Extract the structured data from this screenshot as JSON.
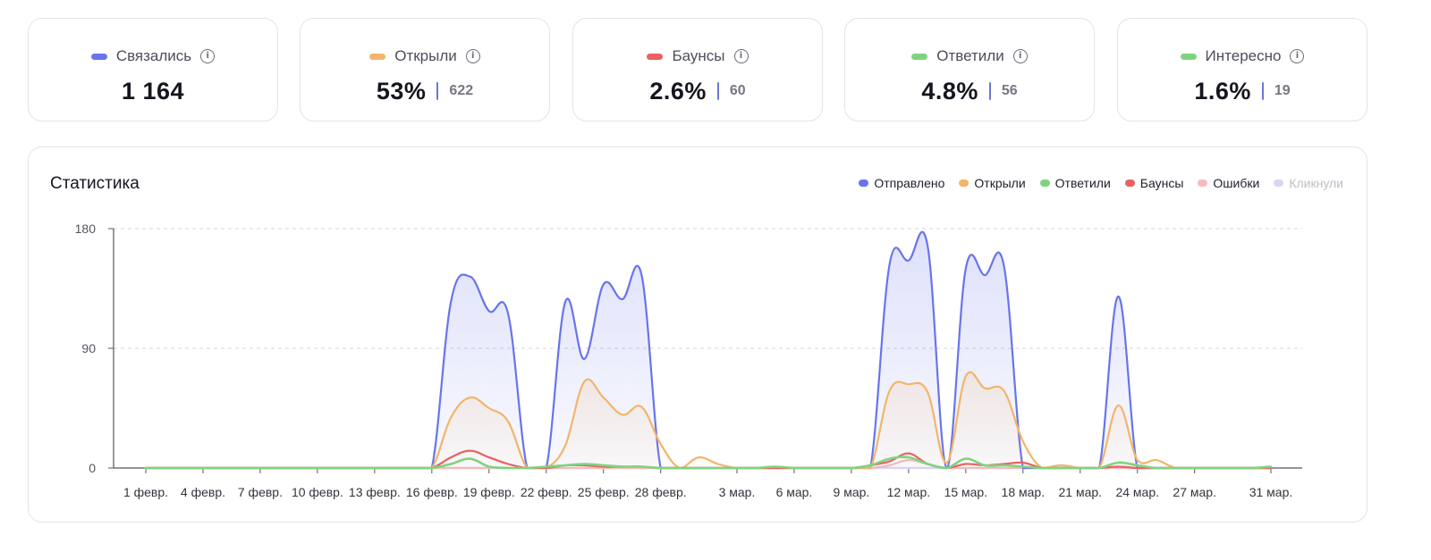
{
  "cards": [
    {
      "label": "Связались",
      "color": "#6875ea",
      "value": "1 164",
      "sub": ""
    },
    {
      "label": "Открыли",
      "color": "#f2b56b",
      "value": "53%",
      "sub": "622"
    },
    {
      "label": "Баунсы",
      "color": "#ea6161",
      "value": "2.6%",
      "sub": "60"
    },
    {
      "label": "Ответили",
      "color": "#7ed47e",
      "value": "4.8%",
      "sub": "56"
    },
    {
      "label": "Интересно",
      "color": "#7ed47e",
      "value": "1.6%",
      "sub": "19"
    }
  ],
  "info_glyph": "i",
  "panel": {
    "title": "Статистика"
  },
  "chart_data": {
    "type": "area",
    "title": "Статистика",
    "xlabel": "",
    "ylabel": "",
    "ylim": [
      0,
      180
    ],
    "yticks": [
      "180",
      "90",
      "0"
    ],
    "grid": true,
    "legend_position": "top-right",
    "x_tick_labels": [
      "1 февр.",
      "4 февр.",
      "7 февр.",
      "10 февр.",
      "13 февр.",
      "16 февр.",
      "19 февр.",
      "22 февр.",
      "25 февр.",
      "28 февр.",
      "3 мар.",
      "6 мар.",
      "9 мар.",
      "12 мар.",
      "15 мар.",
      "18 мар.",
      "21 мар.",
      "24 мар.",
      "27 мар.",
      "31 мар."
    ],
    "x": [
      "1 февр.",
      "2 февр.",
      "3 февр.",
      "4 февр.",
      "5 февр.",
      "6 февр.",
      "7 февр.",
      "8 февр.",
      "9 февр.",
      "10 февр.",
      "11 февр.",
      "12 февр.",
      "13 февр.",
      "14 февр.",
      "15 февр.",
      "16 февр.",
      "17 февр.",
      "18 февр.",
      "19 февр.",
      "20 февр.",
      "21 февр.",
      "22 февр.",
      "23 февр.",
      "24 февр.",
      "25 февр.",
      "26 февр.",
      "27 февр.",
      "28 февр.",
      "29 февр.",
      "1 мар.",
      "2 мар.",
      "3 мар.",
      "4 мар.",
      "5 мар.",
      "6 мар.",
      "7 мар.",
      "8 мар.",
      "9 мар.",
      "10 мар.",
      "11 мар.",
      "12 мар.",
      "13 мар.",
      "14 мар.",
      "15 мар.",
      "16 мар.",
      "17 мар.",
      "18 мар.",
      "19 мар.",
      "20 мар.",
      "21 мар.",
      "22 мар.",
      "23 мар.",
      "24 мар.",
      "25 мар.",
      "26 мар.",
      "27 мар.",
      "28 мар.",
      "29 мар.",
      "30 мар.",
      "31 мар."
    ],
    "series": [
      {
        "name": "Отправлено",
        "color": "#6875ea",
        "values": [
          0,
          0,
          0,
          0,
          0,
          0,
          0,
          0,
          0,
          0,
          0,
          0,
          0,
          0,
          0,
          0,
          125,
          144,
          118,
          116,
          0,
          0,
          125,
          82,
          138,
          127,
          145,
          0,
          0,
          0,
          0,
          0,
          0,
          0,
          0,
          0,
          0,
          0,
          0,
          153,
          156,
          167,
          0,
          150,
          145,
          152,
          0,
          0,
          0,
          0,
          0,
          129,
          0,
          0,
          0,
          0,
          0,
          0,
          0,
          0
        ]
      },
      {
        "name": "Открыли",
        "color": "#f2b56b",
        "values": [
          0,
          0,
          0,
          0,
          0,
          0,
          0,
          0,
          0,
          0,
          0,
          0,
          0,
          0,
          0,
          0,
          38,
          53,
          45,
          35,
          0,
          0,
          17,
          65,
          53,
          40,
          46,
          18,
          0,
          8,
          3,
          0,
          0,
          0,
          0,
          0,
          0,
          0,
          0,
          58,
          63,
          57,
          4,
          69,
          60,
          58,
          20,
          0,
          2,
          0,
          0,
          47,
          6,
          6,
          0,
          0,
          0,
          0,
          0,
          0
        ]
      },
      {
        "name": "Ответили",
        "color": "#7ed47e",
        "values": [
          0,
          0,
          0,
          0,
          0,
          0,
          0,
          0,
          0,
          0,
          0,
          0,
          0,
          0,
          0,
          0,
          3,
          7,
          1,
          0,
          0,
          1,
          2,
          3,
          2,
          1,
          1,
          0,
          0,
          0,
          0,
          0,
          0,
          1,
          0,
          0,
          0,
          0,
          2,
          7,
          8,
          3,
          0,
          7,
          2,
          2,
          1,
          0,
          0,
          0,
          0,
          4,
          2,
          0,
          0,
          0,
          0,
          0,
          0,
          1
        ]
      },
      {
        "name": "Баунсы",
        "color": "#ea6161",
        "values": [
          0,
          0,
          0,
          0,
          0,
          0,
          0,
          0,
          0,
          0,
          0,
          0,
          0,
          0,
          0,
          0,
          8,
          13,
          8,
          3,
          0,
          0,
          2,
          2,
          1,
          1,
          1,
          0,
          0,
          0,
          0,
          0,
          0,
          0,
          0,
          0,
          0,
          0,
          2,
          5,
          11,
          3,
          0,
          3,
          2,
          3,
          4,
          0,
          0,
          0,
          0,
          1,
          0,
          0,
          0,
          0,
          0,
          0,
          0,
          0
        ]
      },
      {
        "name": "Ошибки",
        "color": "#f5bcbc",
        "values": [
          0,
          0,
          0,
          0,
          0,
          0,
          0,
          0,
          0,
          0,
          0,
          0,
          0,
          0,
          0,
          0,
          0,
          0,
          0,
          0,
          0,
          0,
          0,
          0,
          0,
          0,
          0,
          0,
          0,
          0,
          0,
          0,
          0,
          0,
          0,
          0,
          0,
          0,
          0,
          2,
          6,
          3,
          0,
          0,
          0,
          0,
          0,
          0,
          0,
          0,
          0,
          0,
          0,
          0,
          0,
          0,
          0,
          0,
          0,
          0
        ]
      },
      {
        "name": "Кликнули",
        "color": "#ddd3f7",
        "values": [
          0,
          0,
          0,
          0,
          0,
          0,
          0,
          0,
          0,
          0,
          0,
          0,
          0,
          0,
          0,
          0,
          0,
          0,
          0,
          0,
          0,
          0,
          0,
          0,
          0,
          0,
          0,
          0,
          0,
          0,
          0,
          0,
          0,
          0,
          0,
          0,
          0,
          0,
          0,
          0,
          0,
          0,
          0,
          0,
          0,
          0,
          0,
          0,
          0,
          0,
          0,
          0,
          0,
          0,
          0,
          0,
          0,
          0,
          0,
          0
        ]
      }
    ]
  }
}
